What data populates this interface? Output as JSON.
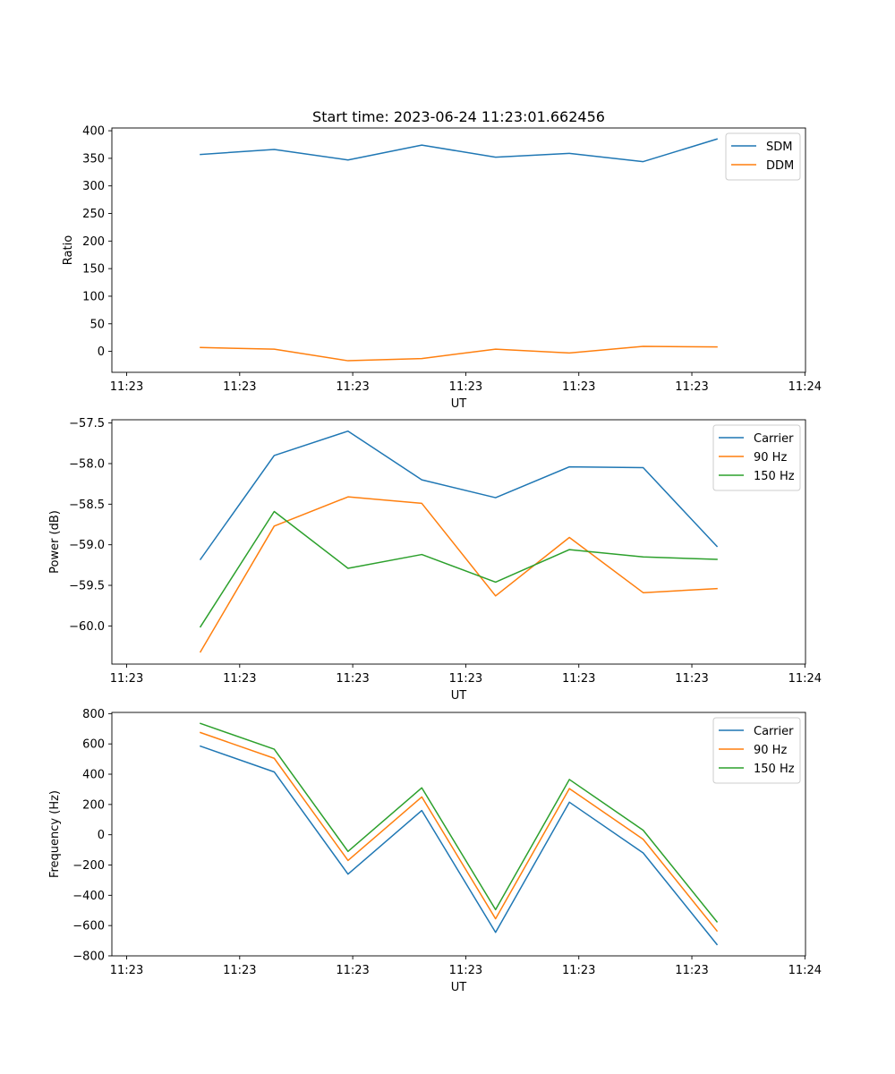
{
  "figure": {
    "title": "Start time: 2023-06-24 11:23:01.662456"
  },
  "colors": {
    "blue": "#1f77b4",
    "orange": "#ff7f0e",
    "green": "#2ca02c"
  },
  "chart_data": [
    {
      "type": "line",
      "title": "Start time: 2023-06-24 11:23:01.662456",
      "xlabel": "UT",
      "ylabel": "Ratio",
      "x": [
        0.5,
        1.0,
        1.5,
        2.0,
        2.5,
        3.0,
        3.5,
        4.0
      ],
      "xlim": [
        -0.1,
        4.6
      ],
      "xticks": [
        0,
        0.766,
        1.532,
        2.298,
        3.064,
        3.83,
        4.596
      ],
      "xtick_labels": [
        "11:23",
        "11:23",
        "11:23",
        "11:23",
        "11:23",
        "11:23",
        "11:24"
      ],
      "ylim": [
        -38,
        405
      ],
      "yticks": [
        0,
        50,
        100,
        150,
        200,
        250,
        300,
        350,
        400
      ],
      "ytick_labels": [
        "0",
        "50",
        "100",
        "150",
        "200",
        "250",
        "300",
        "350",
        "400"
      ],
      "legend": "top-right",
      "series": [
        {
          "name": "SDM",
          "color": "#1f77b4",
          "values": [
            357,
            366,
            347,
            374,
            352,
            359,
            344,
            385
          ]
        },
        {
          "name": "DDM",
          "color": "#ff7f0e",
          "values": [
            7,
            4,
            -17,
            -13,
            4,
            -3,
            9,
            8
          ]
        }
      ]
    },
    {
      "type": "line",
      "title": "",
      "xlabel": "UT",
      "ylabel": "Power (dB)",
      "x": [
        0.5,
        1.0,
        1.5,
        2.0,
        2.5,
        3.0,
        3.5,
        4.0
      ],
      "xlim": [
        -0.1,
        4.6
      ],
      "xticks": [
        0,
        0.766,
        1.532,
        2.298,
        3.064,
        3.83,
        4.596
      ],
      "xtick_labels": [
        "11:23",
        "11:23",
        "11:23",
        "11:23",
        "11:23",
        "11:23",
        "11:24"
      ],
      "ylim": [
        -60.47,
        -57.46
      ],
      "yticks": [
        -60.0,
        -59.5,
        -59.0,
        -58.5,
        -58.0,
        -57.5
      ],
      "ytick_labels": [
        "−60.0",
        "−59.5",
        "−59.0",
        "−58.5",
        "−58.0",
        "−57.5"
      ],
      "legend": "top-right",
      "series": [
        {
          "name": "Carrier",
          "color": "#1f77b4",
          "values": [
            -59.18,
            -57.9,
            -57.6,
            -58.2,
            -58.42,
            -58.04,
            -58.05,
            -59.02
          ]
        },
        {
          "name": "90 Hz",
          "color": "#ff7f0e",
          "values": [
            -60.32,
            -58.77,
            -58.41,
            -58.49,
            -59.63,
            -58.91,
            -59.59,
            -59.54
          ]
        },
        {
          "name": "150 Hz",
          "color": "#2ca02c",
          "values": [
            -60.01,
            -58.59,
            -59.29,
            -59.12,
            -59.46,
            -59.06,
            -59.15,
            -59.18
          ]
        }
      ]
    },
    {
      "type": "line",
      "title": "",
      "xlabel": "UT",
      "ylabel": "Frequency (Hz)",
      "x": [
        0.5,
        1.0,
        1.5,
        2.0,
        2.5,
        3.0,
        3.5,
        4.0
      ],
      "xlim": [
        -0.1,
        4.6
      ],
      "xticks": [
        0,
        0.766,
        1.532,
        2.298,
        3.064,
        3.83,
        4.596
      ],
      "xtick_labels": [
        "11:23",
        "11:23",
        "11:23",
        "11:23",
        "11:23",
        "11:23",
        "11:24"
      ],
      "ylim": [
        -800,
        808
      ],
      "yticks": [
        -800,
        -600,
        -400,
        -200,
        0,
        200,
        400,
        600,
        800
      ],
      "ytick_labels": [
        "−800",
        "−600",
        "−400",
        "−200",
        "0",
        "200",
        "400",
        "600",
        "800"
      ],
      "legend": "top-right",
      "series": [
        {
          "name": "Carrier",
          "color": "#1f77b4",
          "values": [
            585,
            415,
            -260,
            160,
            -645,
            215,
            -120,
            -725
          ]
        },
        {
          "name": "90 Hz",
          "color": "#ff7f0e",
          "values": [
            675,
            505,
            -170,
            250,
            -555,
            305,
            -30,
            -635
          ]
        },
        {
          "name": "150 Hz",
          "color": "#2ca02c",
          "values": [
            735,
            565,
            -110,
            310,
            -495,
            365,
            30,
            -575
          ]
        }
      ]
    }
  ]
}
